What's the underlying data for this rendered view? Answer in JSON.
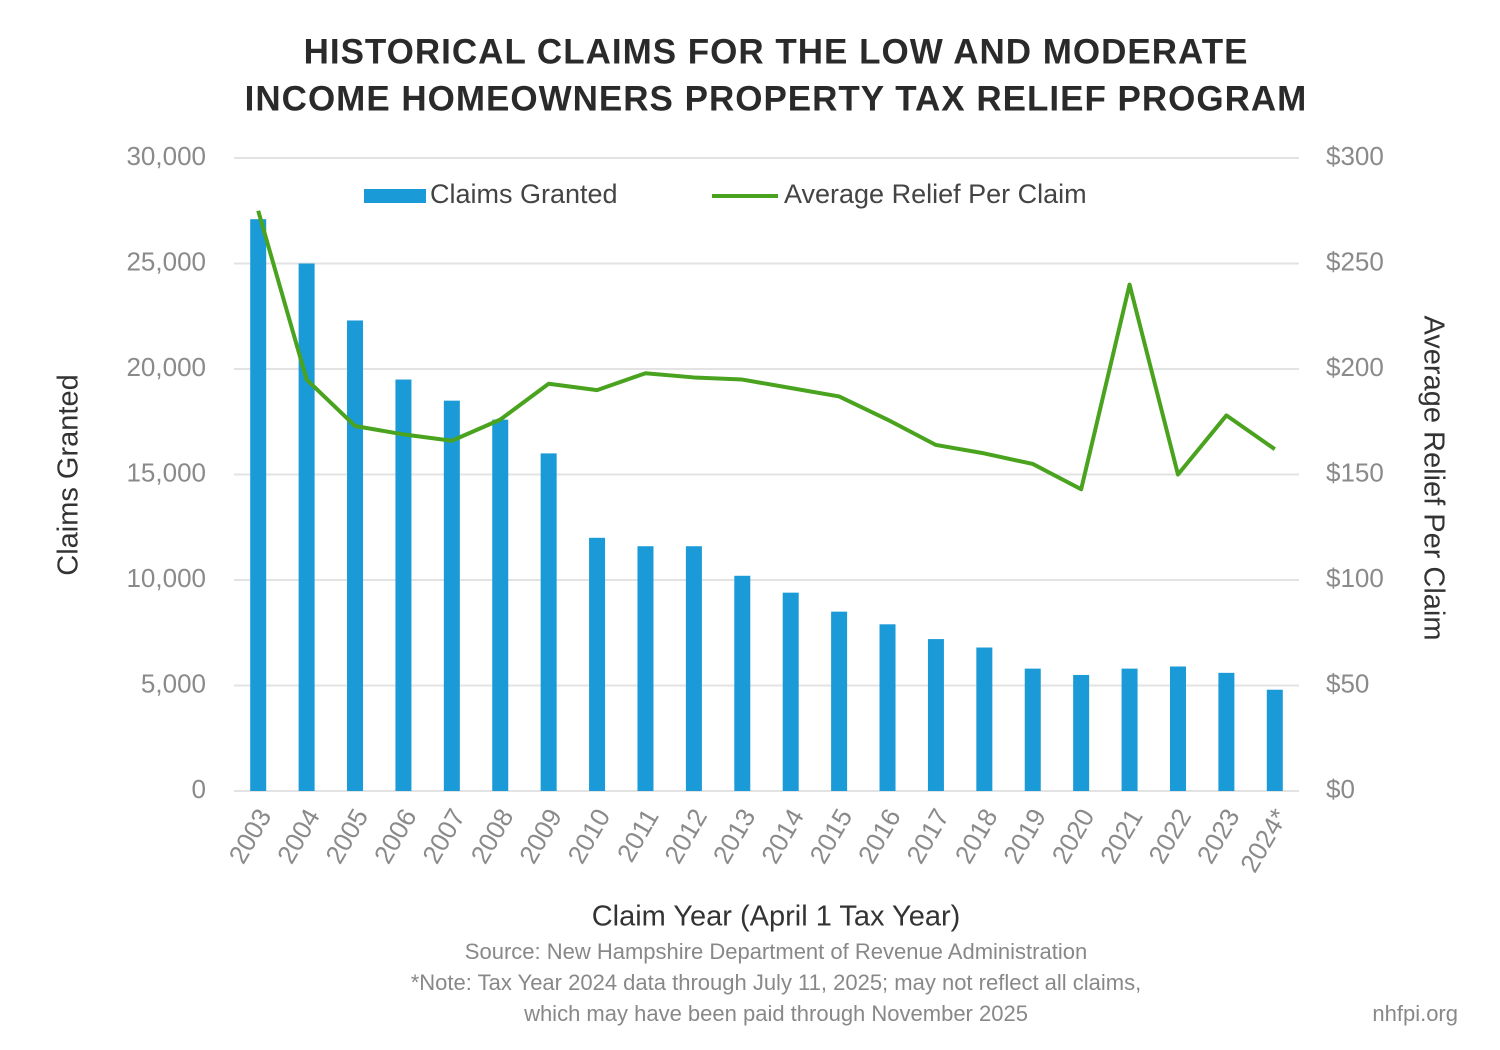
{
  "chart_data": {
    "type": "bar_line",
    "title": [
      "HISTORICAL CLAIMS FOR THE LOW AND MODERATE",
      "INCOME HOMEOWNERS PROPERTY TAX RELIEF PROGRAM"
    ],
    "x_label": "Claim Year (April 1 Tax Year)",
    "y_label": "Claims Granted",
    "y2_label": "Average Relief Per Claim",
    "source": "Source: New Hampshire Department of Revenue Administration",
    "note": [
      "*Note: Tax Year 2024 data through July 11, 2025; may not reflect all claims,",
      "which may have been paid through November 2025"
    ],
    "credit": "nhfpi.org",
    "categories": [
      "2003",
      "2004",
      "2005",
      "2006",
      "2007",
      "2008",
      "2009",
      "2010",
      "2011",
      "2012",
      "2013",
      "2014",
      "2015",
      "2016",
      "2017",
      "2018",
      "2019",
      "2020",
      "2021",
      "2022",
      "2023",
      "2024*"
    ],
    "series": [
      {
        "name": "Claims Granted",
        "type": "bar",
        "color": "#1a9ad6",
        "axis": "y",
        "values": [
          27100,
          25000,
          22300,
          19500,
          18500,
          17600,
          16000,
          12000,
          11600,
          11600,
          10200,
          9400,
          8500,
          7900,
          7200,
          6800,
          5800,
          5500,
          5800,
          5900,
          5600,
          4800
        ]
      },
      {
        "name": "Average Relief Per Claim",
        "type": "line",
        "color": "#4aa31e",
        "axis": "y2",
        "values": [
          275,
          195,
          173,
          169,
          166,
          176,
          193,
          190,
          198,
          196,
          195,
          191,
          187,
          176,
          164,
          160,
          155,
          143,
          240,
          150,
          178,
          162
        ]
      }
    ],
    "ylim": [
      0,
      30000
    ],
    "yticks": [
      0,
      {
        "value": 5000,
        "label": "5,000"
      },
      {
        "value": 10000,
        "label": "10,000"
      },
      {
        "value": 15000,
        "label": "15,000"
      },
      {
        "value": 20000,
        "label": "20,000"
      },
      {
        "value": 25000,
        "label": "25,000"
      },
      {
        "value": 30000,
        "label": "30,000"
      }
    ],
    "y2lim": [
      0,
      300
    ],
    "y2ticks": [
      {
        "value": 0,
        "label": "$0"
      },
      {
        "value": 50,
        "label": "$50"
      },
      {
        "value": 100,
        "label": "$100"
      },
      {
        "value": 150,
        "label": "$150"
      },
      {
        "value": 200,
        "label": "$200"
      },
      {
        "value": 250,
        "label": "$250"
      },
      {
        "value": 300,
        "label": "$300"
      }
    ],
    "grid": true,
    "legend": "top"
  }
}
